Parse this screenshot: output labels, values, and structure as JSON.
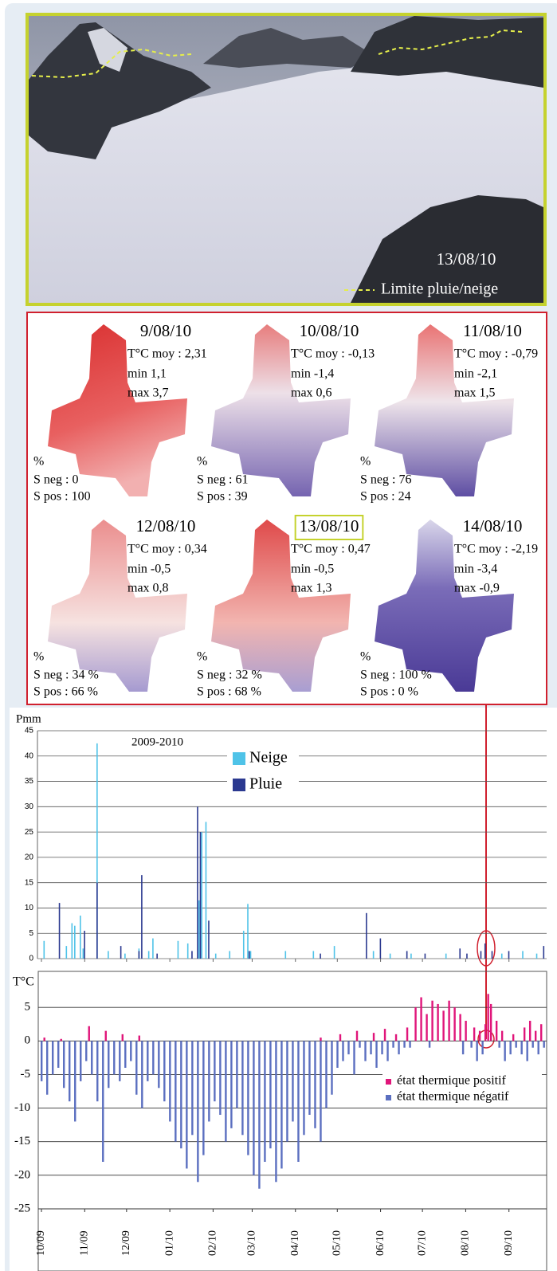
{
  "photo": {
    "date": "13/08/10",
    "legend": "Limite pluie/neige"
  },
  "maps": [
    {
      "date": "9/08/10",
      "mean": "T°C moy : 2,31",
      "min": "min 1,1",
      "max": "max 3,7",
      "unit": "%",
      "s_neg": "S neg : 0",
      "s_pos": "S pos : 100"
    },
    {
      "date": "10/08/10",
      "mean": "T°C moy : -0,13",
      "min": "min -1,4",
      "max": "max 0,6",
      "unit": "%",
      "s_neg": "S neg : 61",
      "s_pos": "S pos : 39"
    },
    {
      "date": "11/08/10",
      "mean": "T°C moy : -0,79",
      "min": "min -2,1",
      "max": "max 1,5",
      "unit": "%",
      "s_neg": "S neg : 76",
      "s_pos": "S pos : 24"
    },
    {
      "date": "12/08/10",
      "mean": "T°C moy : 0,34",
      "min": "min -0,5",
      "max": "max 0,8",
      "unit": "%",
      "s_neg": "S neg : 34 %",
      "s_pos": "S pos : 66 %"
    },
    {
      "date": "13/08/10",
      "mean": "T°C moy : 0,47",
      "min": "min -0,5",
      "max": "max 1,3",
      "unit": "%",
      "s_neg": "S neg : 32 %",
      "s_pos": "S pos : 68 %"
    },
    {
      "date": "14/08/10",
      "mean": "T°C moy : -2,19",
      "min": "min -3,4",
      "max": "max -0,9",
      "unit": "%",
      "s_neg": "S neg : 100 %",
      "s_pos": "S pos : 0 %"
    }
  ],
  "chart_data": [
    {
      "type": "bar",
      "title": "2009-2010",
      "y_label": "Pmm",
      "xlim": [
        0,
        362
      ],
      "ylim": [
        0,
        45
      ],
      "yticks": [
        0,
        5,
        10,
        15,
        20,
        25,
        30,
        35,
        40,
        45
      ],
      "grid": true,
      "series": [
        {
          "name": "Neige",
          "color": "#4fc3e8",
          "x": [
            2,
            18,
            22,
            24,
            28,
            30,
            40,
            48,
            60,
            70,
            77,
            80,
            98,
            105,
            113,
            115,
            118,
            125,
            135,
            145,
            148,
            150,
            175,
            195,
            210,
            238,
            250,
            265,
            290,
            330,
            345,
            355
          ],
          "values": [
            3.5,
            2.5,
            7,
            6.5,
            8.5,
            2,
            42.5,
            1.5,
            1,
            2,
            1.5,
            4,
            3.5,
            3,
            11.5,
            25,
            27,
            1,
            1.5,
            5.5,
            10.8,
            1.5,
            1.5,
            1.5,
            2.5,
            1.5,
            1,
            1,
            1,
            1,
            1.5,
            1
          ]
        },
        {
          "name": "Pluie",
          "color": "#2b3990",
          "x": [
            13,
            31,
            40,
            57,
            70,
            72,
            83,
            108,
            112,
            114,
            120,
            149,
            200,
            233,
            243,
            262,
            275,
            300,
            305,
            315,
            318,
            323,
            335,
            360
          ],
          "values": [
            11,
            5.5,
            15,
            2.5,
            1.5,
            16.5,
            1,
            1.5,
            30,
            25,
            7.5,
            1.5,
            1,
            9,
            4,
            1.5,
            1,
            2,
            1,
            1.5,
            3,
            1.5,
            1.5,
            2.5
          ]
        }
      ]
    },
    {
      "type": "bar",
      "y_label": "T°C",
      "xlim": [
        0,
        362
      ],
      "ylim": [
        -25,
        10
      ],
      "yticks": [
        -25,
        -20,
        -15,
        -10,
        -5,
        0,
        5
      ],
      "grid": true,
      "xticks": [
        {
          "value": 0,
          "label": "10/09"
        },
        {
          "value": 31,
          "label": "11/09"
        },
        {
          "value": 61,
          "label": "12/09"
        },
        {
          "value": 92,
          "label": "01/10"
        },
        {
          "value": 123,
          "label": "02/10"
        },
        {
          "value": 151,
          "label": "03/10"
        },
        {
          "value": 182,
          "label": "04/10"
        },
        {
          "value": 212,
          "label": "05/10"
        },
        {
          "value": 243,
          "label": "06/10"
        },
        {
          "value": 273,
          "label": "07/10"
        },
        {
          "value": 304,
          "label": "08/10"
        },
        {
          "value": 335,
          "label": "09/10"
        }
      ],
      "series": [
        {
          "name": "état thermique positif",
          "color": "#e0157a",
          "x": [
            2,
            14,
            34,
            46,
            58,
            70,
            200,
            214,
            226,
            238,
            246,
            254,
            262,
            268,
            272,
            276,
            280,
            284,
            288,
            292,
            296,
            300,
            304,
            310,
            314,
            318,
            320,
            322,
            326,
            330,
            338,
            346,
            350,
            354,
            358
          ],
          "values": [
            0.5,
            0.3,
            2.2,
            1.5,
            1,
            0.8,
            0.5,
            1,
            1.5,
            1.2,
            1.8,
            1,
            2,
            5,
            6.5,
            4,
            6,
            5.5,
            4.5,
            6,
            5,
            4,
            3,
            2,
            1.5,
            2.5,
            7,
            5.5,
            3,
            1.5,
            1,
            2,
            3,
            1.5,
            2.5
          ]
        },
        {
          "name": "état thermique négatif",
          "color": "#5b6fc0",
          "x": [
            0,
            4,
            8,
            12,
            16,
            20,
            24,
            28,
            32,
            36,
            40,
            44,
            48,
            52,
            56,
            60,
            64,
            68,
            72,
            76,
            80,
            84,
            88,
            92,
            96,
            100,
            104,
            108,
            112,
            116,
            120,
            124,
            128,
            132,
            136,
            140,
            144,
            148,
            152,
            156,
            160,
            164,
            168,
            172,
            176,
            180,
            184,
            188,
            192,
            196,
            200,
            204,
            208,
            212,
            216,
            220,
            224,
            228,
            232,
            236,
            240,
            244,
            248,
            252,
            256,
            260,
            264,
            278,
            302,
            308,
            312,
            316,
            328,
            332,
            336,
            340,
            344,
            348,
            352,
            356,
            360
          ],
          "values": [
            -6,
            -8,
            -5,
            -4,
            -7,
            -9,
            -12,
            -6,
            -3,
            -5,
            -9,
            -18,
            -7,
            -5,
            -6,
            -4,
            -3,
            -8,
            -10,
            -6,
            -5,
            -7,
            -9,
            -12,
            -15,
            -16,
            -19,
            -14,
            -21,
            -17,
            -12,
            -9,
            -11,
            -15,
            -13,
            -10,
            -14,
            -17,
            -20,
            -22,
            -18,
            -16,
            -21,
            -19,
            -15,
            -12,
            -18,
            -14,
            -11,
            -13,
            -15,
            -10,
            -8,
            -4,
            -3,
            -2,
            -5,
            -1,
            -3,
            -2,
            -4,
            -2,
            -3,
            -1,
            -2,
            -1,
            -1,
            -1,
            -2,
            -1,
            -3,
            -2,
            -1,
            -3,
            -2,
            -1,
            -2,
            -3,
            -1,
            -2,
            -1
          ]
        }
      ]
    }
  ]
}
